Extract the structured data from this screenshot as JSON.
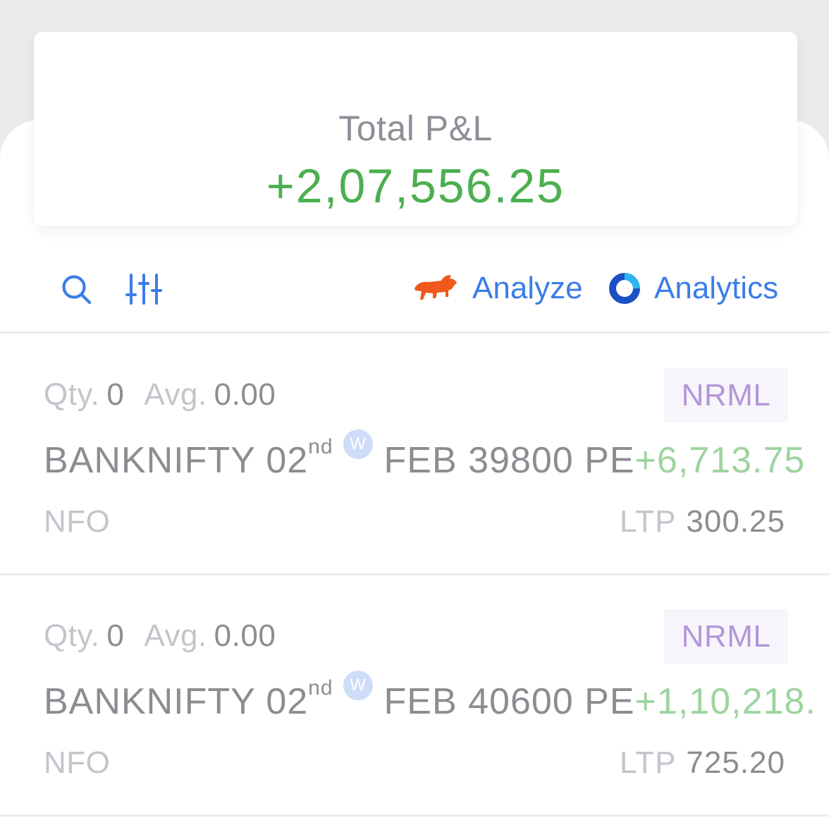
{
  "summary": {
    "label": "Total P&L",
    "value": "+2,07,556.25",
    "value_color": "#4caf50"
  },
  "toolbar": {
    "search_icon": "search-icon",
    "filter_icon": "sliders-icon",
    "analyze_label": "Analyze",
    "analyze_icon": "bull-icon",
    "analytics_label": "Analytics",
    "analytics_icon": "ring-icon",
    "accent_color": "#3b7de9"
  },
  "positions": [
    {
      "qty_label": "Qty.",
      "qty": "0",
      "avg_label": "Avg.",
      "avg": "0.00",
      "product": "NRML",
      "symbol_prefix": "BANKNIFTY 02",
      "symbol_suffix": "nd",
      "weekly_badge": "W",
      "symbol_rest": "FEB 39800 PE",
      "pnl": "+6,713.75",
      "exchange": "NFO",
      "ltp_label": "LTP",
      "ltp": "300.25"
    },
    {
      "qty_label": "Qty.",
      "qty": "0",
      "avg_label": "Avg.",
      "avg": "0.00",
      "product": "NRML",
      "symbol_prefix": "BANKNIFTY 02",
      "symbol_suffix": "nd",
      "weekly_badge": "W",
      "symbol_rest": "FEB 40600 PE",
      "pnl": "+1,10,218.",
      "exchange": "NFO",
      "ltp_label": "LTP",
      "ltp": "725.20"
    }
  ]
}
